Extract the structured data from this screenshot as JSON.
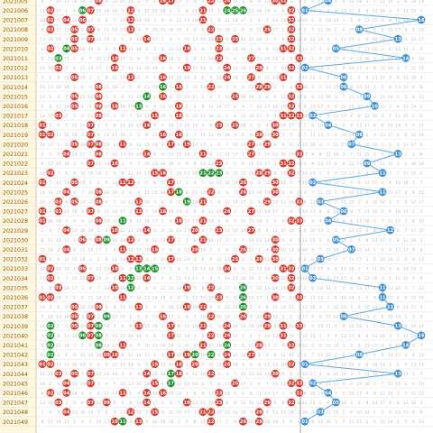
{
  "colors": {
    "red_ball": "#d23a2e",
    "green_ball": "#1b8f2a",
    "blue_ball": "#3f8fd0",
    "blue_line": "#5aa8e0",
    "issue_bg": "#fff7e0",
    "issue_text": "#8a5a00",
    "faint_num": "#bdbdbd",
    "grid_line": "#e6e6e6"
  },
  "table": {
    "issues": [
      "2021005",
      "2021006",
      "2021007",
      "2021008",
      "2021009",
      "2021010",
      "2021011",
      "2021012",
      "2021013",
      "2021014",
      "2021015",
      "2021016",
      "2021017",
      "2021018",
      "2021019",
      "2021020",
      "2021021",
      "2021022",
      "2021023",
      "2021024",
      "2021025",
      "2021026",
      "2021027",
      "2021028",
      "2021029",
      "2021030",
      "2021031",
      "2021032",
      "2021033",
      "2021034",
      "2021035",
      "2021036",
      "2021037",
      "2021038",
      "2021039",
      "2021040",
      "2021041",
      "2021042",
      "2021043",
      "2021044",
      "2021045",
      "2021046",
      "2021047",
      "2021048",
      "2021049"
    ],
    "rows": [
      {
        "red": [
          8,
          16,
          17,
          22,
          24,
          30,
          31
        ],
        "green": [],
        "blue": 4
      },
      {
        "red": [
          2,
          7,
          12,
          21,
          32
        ],
        "green": [
          6,
          24,
          25,
          26
        ],
        "blue": 1
      },
      {
        "red": [
          2,
          4,
          6,
          12,
          21,
          32
        ],
        "green": [],
        "blue": 16
      },
      {
        "red": [
          2,
          5,
          7,
          12,
          22,
          29,
          32
        ],
        "green": [],
        "blue": 8
      },
      {
        "red": [
          5,
          7,
          14,
          23,
          25,
          32
        ],
        "green": [],
        "blue": 13
      },
      {
        "red": [
          2,
          5,
          11,
          19,
          23,
          31,
          32
        ],
        "green": [
          4
        ],
        "blue": 5
      },
      {
        "red": [
          10,
          16,
          23,
          27,
          33
        ],
        "green": [
          3
        ],
        "blue": 14
      },
      {
        "red": [
          3,
          10,
          19,
          24,
          28,
          32
        ],
        "green": [],
        "blue": 1
      },
      {
        "red": [
          5,
          12,
          16,
          24,
          27,
          31
        ],
        "green": [],
        "blue": 6
      },
      {
        "red": [
          8,
          18,
          22,
          28,
          29,
          33
        ],
        "green": [
          16
        ],
        "blue": 6
      },
      {
        "red": [
          5,
          8,
          16,
          25,
          32
        ],
        "green": [
          14
        ],
        "blue": 9
      },
      {
        "red": [
          5,
          8,
          10,
          13,
          18,
          32
        ],
        "green": [
          13
        ],
        "blue": 10
      },
      {
        "red": [
          3,
          8,
          15,
          18,
          31,
          32,
          33
        ],
        "green": [],
        "blue": 2
      },
      {
        "red": [
          1,
          7,
          14,
          23,
          25,
          30
        ],
        "green": [],
        "blue": 4
      },
      {
        "red": [
          1,
          2,
          7,
          16,
          18,
          28,
          30
        ],
        "green": [],
        "blue": 8
      },
      {
        "red": [
          5,
          7,
          8,
          11,
          17,
          19,
          27,
          29
        ],
        "green": [],
        "blue": 7
      },
      {
        "red": [
          4,
          8,
          14,
          21,
          27,
          33
        ],
        "green": [],
        "blue": 13
      },
      {
        "red": [
          7,
          10,
          23,
          31,
          32
        ],
        "green": [],
        "blue": 9
      },
      {
        "red": [
          2,
          15,
          16,
          28,
          29,
          32
        ],
        "green": [
          21,
          22,
          23
        ],
        "blue": 11
      },
      {
        "red": [
          1,
          5,
          11,
          12,
          17,
          26,
          30
        ],
        "green": [],
        "blue": 2
      },
      {
        "red": [
          4,
          8,
          17,
          18,
          22,
          26,
          30
        ],
        "green": [
          18
        ],
        "blue": 11
      },
      {
        "red": [
          3,
          5,
          8,
          13,
          21,
          29,
          33
        ],
        "green": [
          19
        ],
        "blue": 3
      },
      {
        "red": [
          1,
          3,
          7,
          13,
          16,
          24,
          27
        ],
        "green": [],
        "blue": 6
      },
      {
        "red": [
          1,
          8,
          18,
          21,
          32,
          33
        ],
        "green": [
          11
        ],
        "blue": 4
      },
      {
        "red": [
          4,
          10,
          14,
          20,
          23,
          27
        ],
        "green": [],
        "blue": 12
      },
      {
        "red": [
          6,
          8,
          12,
          17,
          21,
          30
        ],
        "green": [
          9
        ],
        "blue": 5
      },
      {
        "red": [
          4,
          11,
          15,
          20,
          26,
          30
        ],
        "green": [],
        "blue": 7
      },
      {
        "red": [
          1,
          12,
          13,
          17,
          25,
          28,
          30
        ],
        "green": [],
        "blue": 3
      },
      {
        "red": [
          2,
          6,
          10,
          24,
          31,
          32
        ],
        "green": [
          13,
          14,
          15
        ],
        "blue": 1
      },
      {
        "red": [
          2,
          7,
          11,
          14,
          30,
          32
        ],
        "green": [
          12
        ],
        "blue": 2
      },
      {
        "red": [
          3,
          10,
          19,
          22,
          32
        ],
        "green": [
          12,
          26
        ],
        "blue": 11
      },
      {
        "red": [
          1,
          2,
          11,
          23,
          30,
          33
        ],
        "green": [
          26
        ],
        "blue": 11
      },
      {
        "red": [
          5,
          8,
          13,
          19,
          21
        ],
        "green": [
          26
        ],
        "blue": 12
      },
      {
        "red": [
          5,
          7,
          16,
          22,
          26,
          29
        ],
        "green": [
          9
        ],
        "blue": 6
      },
      {
        "red": [
          5,
          7,
          13,
          17,
          21,
          24,
          29,
          31,
          33
        ],
        "green": [
          2,
          8
        ],
        "blue": 13
      },
      {
        "red": [
          7,
          17,
          22,
          24,
          31
        ],
        "green": [
          2,
          6,
          8
        ],
        "blue": 16
      },
      {
        "red": [
          11,
          21,
          28,
          32
        ],
        "green": [
          2,
          8,
          24
        ],
        "blue": 14
      },
      {
        "red": [
          9,
          10,
          17,
          19,
          24,
          27
        ],
        "green": [
          2,
          20,
          22
        ],
        "blue": 8
      },
      {
        "red": [
          1,
          2,
          15,
          18,
          20,
          24,
          32
        ],
        "green": [],
        "blue": 1
      },
      {
        "red": [
          3,
          5,
          7,
          14,
          18,
          22,
          30
        ],
        "green": [
          17
        ],
        "blue": 13
      },
      {
        "red": [
          4,
          7,
          15,
          25,
          32,
          33
        ],
        "green": [
          17
        ],
        "blue": 2
      },
      {
        "red": [
          2,
          4,
          11,
          14,
          16,
          23,
          33
        ],
        "green": [],
        "blue": 4
      },
      {
        "red": [
          3,
          7,
          9,
          14,
          19,
          23,
          29,
          32
        ],
        "green": [],
        "blue": 5
      },
      {
        "red": [
          4,
          12,
          15,
          21,
          22,
          28
        ],
        "green": [],
        "blue": 3
      },
      {
        "red": [
          10,
          13,
          22,
          26,
          28
        ],
        "green": [
          11
        ],
        "blue": 1
      }
    ]
  }
}
